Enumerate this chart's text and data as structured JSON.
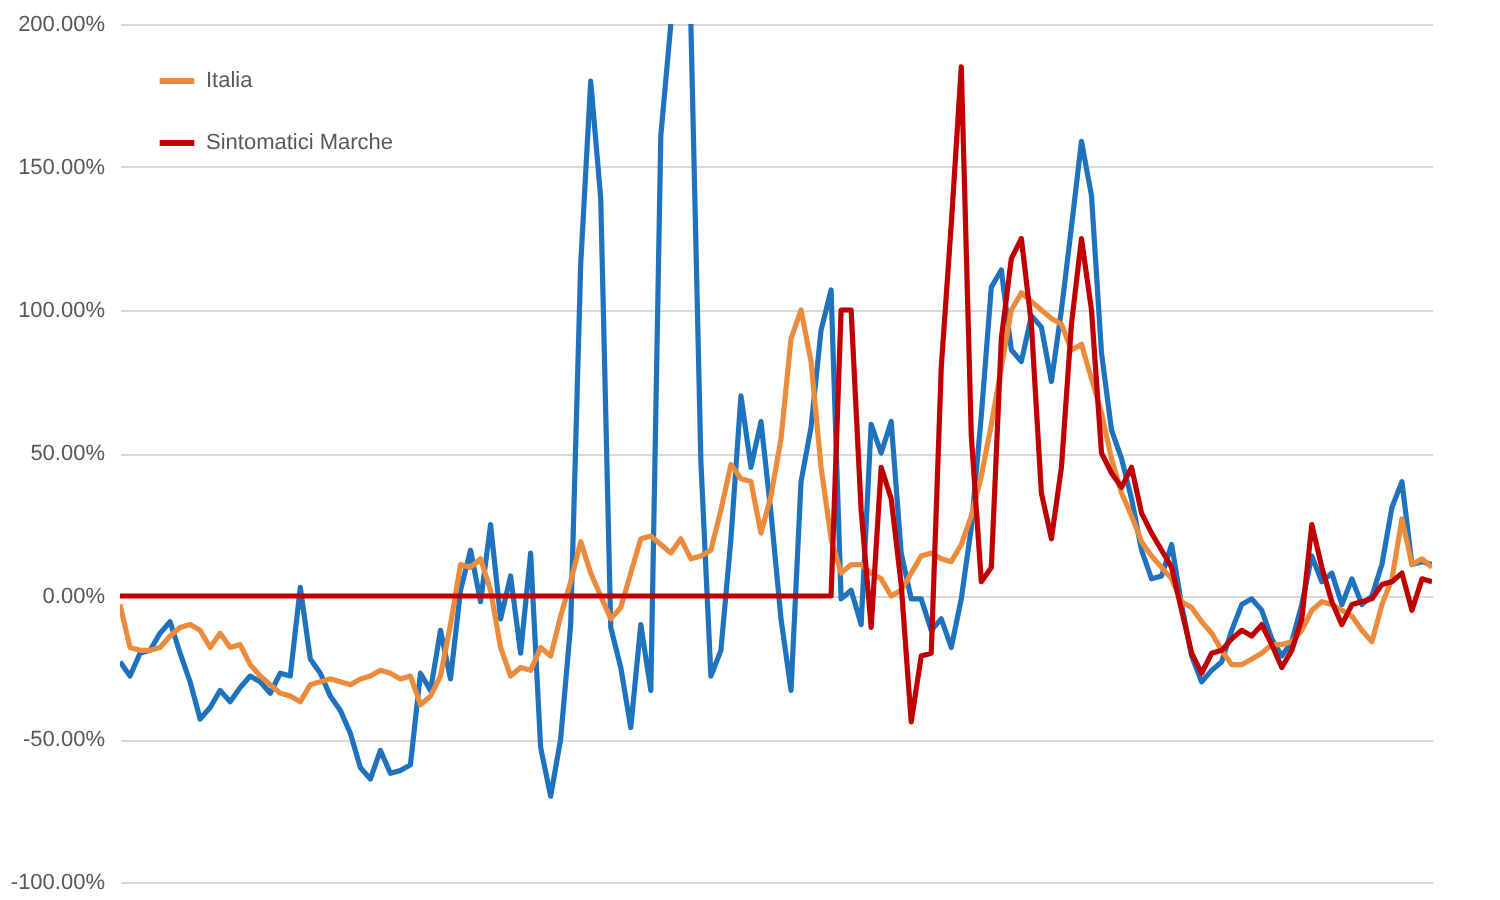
{
  "chart_data": {
    "type": "line",
    "categories": [
      null,
      null,
      null,
      null,
      null,
      null,
      null,
      null,
      null,
      null,
      null,
      null,
      null,
      null,
      null,
      null,
      null,
      null,
      null,
      null,
      null,
      null,
      null,
      null,
      null,
      null,
      null,
      null,
      null,
      null,
      null,
      null,
      null,
      null,
      null,
      null,
      null,
      null,
      null,
      null,
      null,
      null,
      null,
      null,
      null,
      null,
      null,
      null,
      null,
      null,
      null,
      null,
      null,
      null,
      null,
      null,
      null,
      null,
      null,
      null,
      null,
      null,
      null,
      null,
      null,
      null,
      null,
      null,
      null,
      null,
      null,
      null,
      null,
      null,
      null,
      null,
      null,
      null,
      null,
      null,
      null,
      null,
      null,
      null,
      null,
      null,
      null,
      null,
      null,
      null,
      null,
      null,
      null,
      null,
      null,
      null,
      null,
      null,
      null,
      null,
      null,
      null,
      null,
      null,
      null,
      null,
      null,
      null,
      null,
      null,
      null,
      null,
      null,
      null,
      null,
      null,
      null,
      null,
      null,
      null,
      null,
      null,
      null,
      null,
      null,
      null,
      null,
      null,
      null,
      null,
      null,
      null
    ],
    "ylim": [
      -100,
      200
    ],
    "yticks": [
      {
        "value": -100,
        "label": "-100.00%"
      },
      {
        "value": -50,
        "label": "-50.00%"
      },
      {
        "value": 0,
        "label": "0.00%"
      },
      {
        "value": 50,
        "label": "50.00%"
      },
      {
        "value": 100,
        "label": "100.00%"
      },
      {
        "value": 150,
        "label": "150.00%"
      },
      {
        "value": 200,
        "label": "200.00%"
      }
    ],
    "grid": "y",
    "legend": "top left",
    "series": [
      {
        "color": "#1f72be",
        "values": [
          -23,
          -28,
          -20,
          -19,
          -13,
          -9,
          -20,
          -30,
          -43,
          -39,
          -33,
          -37,
          -32,
          -28,
          -30,
          -34,
          -27,
          -28,
          3,
          -22,
          -27,
          -35,
          -40,
          -48,
          -60,
          -64,
          -54,
          -62,
          -61,
          -59,
          -27,
          -33,
          -12,
          -29,
          2,
          16,
          -2,
          25,
          -8,
          7,
          -20,
          15,
          -53,
          -70,
          -50,
          -10,
          116,
          180,
          139,
          -11,
          -25,
          -46,
          -10,
          -33,
          161,
          200,
          null,
          200,
          47,
          -28,
          -19,
          20,
          70,
          45,
          61,
          29,
          -8,
          -33,
          40,
          59,
          93,
          107,
          -1,
          2,
          -10,
          60,
          50,
          61,
          15,
          -1,
          -1,
          -12,
          -8,
          -18,
          -1,
          24,
          63,
          108,
          114,
          86,
          82,
          98,
          94,
          75,
          100,
          129,
          159,
          140,
          85,
          58,
          48,
          34,
          16,
          6,
          7,
          18,
          -3,
          -21,
          -30,
          -26,
          -23,
          -12,
          -3,
          -1,
          -5,
          -15,
          -21,
          -16,
          -3,
          14,
          5,
          8,
          -3,
          6,
          -3,
          0,
          11,
          31,
          40,
          11,
          12,
          11
        ]
      },
      {
        "name": "Italia",
        "color": "#ed8b3c",
        "values": [
          -3,
          -18,
          -19,
          -19,
          -18,
          -14,
          -11,
          -10,
          -12,
          -18,
          -13,
          -18,
          -17,
          -24,
          -28,
          -31,
          -34,
          -35,
          -37,
          -31,
          -30,
          -29,
          -30,
          -31,
          -29,
          -28,
          -26,
          -27,
          -29,
          -28,
          -38,
          -35,
          -28,
          -10,
          11,
          10,
          13,
          2,
          -18,
          -28,
          -25,
          -26,
          -18,
          -21,
          -7,
          5,
          19,
          8,
          0,
          -8,
          -4,
          8,
          20,
          21,
          18,
          15,
          20,
          13,
          14,
          16,
          30,
          46,
          41,
          40,
          22,
          35,
          55,
          90,
          100,
          82,
          45,
          20,
          8,
          11,
          11,
          8,
          6,
          0,
          2,
          8,
          14,
          15,
          13,
          12,
          18,
          28,
          42,
          60,
          80,
          100,
          106,
          103,
          100,
          97,
          95,
          86,
          88,
          76,
          64,
          48,
          36,
          28,
          19,
          14,
          10,
          6,
          -2,
          -4,
          -9,
          -13,
          -19,
          -24,
          -24,
          -22,
          -20,
          -17,
          -17,
          -16,
          -12,
          -5,
          -2,
          -3,
          -5,
          -7,
          -12,
          -16,
          -3,
          6,
          27,
          11,
          13,
          10
        ]
      },
      {
        "name": "Sintomatici Marche",
        "color": "#c00000",
        "values": [
          0,
          0,
          0,
          0,
          0,
          0,
          0,
          0,
          0,
          0,
          0,
          0,
          0,
          0,
          0,
          0,
          0,
          0,
          0,
          0,
          0,
          0,
          0,
          0,
          0,
          0,
          0,
          0,
          0,
          0,
          0,
          0,
          0,
          0,
          0,
          0,
          0,
          0,
          0,
          0,
          0,
          0,
          0,
          0,
          0,
          0,
          0,
          0,
          0,
          0,
          0,
          0,
          0,
          0,
          0,
          0,
          0,
          0,
          0,
          0,
          0,
          0,
          0,
          0,
          0,
          0,
          0,
          0,
          0,
          0,
          0,
          0,
          100,
          100,
          30,
          -11,
          45,
          34,
          4,
          -44,
          -21,
          -20,
          80,
          130,
          185,
          56,
          5,
          10,
          90,
          118,
          125,
          95,
          36,
          20,
          45,
          95,
          125,
          100,
          50,
          43,
          38,
          45,
          29,
          22,
          16,
          10,
          -5,
          -20,
          -27,
          -20,
          -19,
          -15,
          -12,
          -14,
          -10,
          -17,
          -25,
          -19,
          -8,
          25,
          10,
          -2,
          -10,
          -3,
          -2,
          -1,
          4,
          5,
          8,
          -5,
          6,
          5
        ]
      }
    ]
  }
}
